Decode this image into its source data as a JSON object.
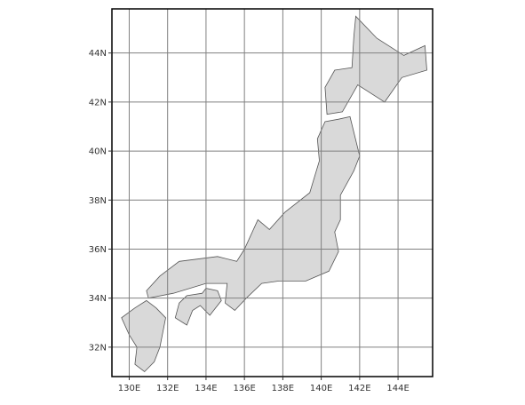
{
  "map": {
    "type": "graticule-map",
    "projection": "lonlat",
    "lon_range": [
      129.1,
      145.8
    ],
    "lat_range": [
      30.8,
      45.8
    ],
    "grid_lon": [
      130,
      132,
      134,
      136,
      138,
      140,
      142,
      144
    ],
    "grid_lat": [
      32,
      34,
      36,
      38,
      40,
      42,
      44
    ],
    "x_tick_labels": [
      "130E",
      "132E",
      "134E",
      "136E",
      "138E",
      "140E",
      "142E",
      "144E"
    ],
    "y_tick_labels": [
      "32N",
      "34N",
      "36N",
      "38N",
      "40N",
      "42N",
      "44N"
    ],
    "colors": {
      "land": "#d9d9d9",
      "coastline": "#555555",
      "grid": "#808080",
      "frame": "#000000",
      "background": "#ffffff"
    },
    "land_polygons": [
      {
        "name": "hokkaido",
        "coords": [
          [
            141.8,
            45.5
          ],
          [
            142.9,
            44.6
          ],
          [
            144.3,
            43.9
          ],
          [
            145.4,
            44.3
          ],
          [
            145.5,
            43.3
          ],
          [
            144.2,
            43.0
          ],
          [
            143.3,
            42.0
          ],
          [
            141.9,
            42.7
          ],
          [
            141.1,
            41.6
          ],
          [
            140.3,
            41.5
          ],
          [
            140.2,
            42.6
          ],
          [
            140.7,
            43.3
          ],
          [
            141.6,
            43.4
          ],
          [
            141.7,
            44.7
          ]
        ]
      },
      {
        "name": "honshu",
        "coords": [
          [
            140.9,
            41.3
          ],
          [
            141.5,
            41.4
          ],
          [
            142.0,
            39.8
          ],
          [
            141.7,
            39.2
          ],
          [
            141.0,
            38.2
          ],
          [
            141.0,
            37.2
          ],
          [
            140.7,
            36.7
          ],
          [
            140.9,
            35.9
          ],
          [
            140.4,
            35.1
          ],
          [
            139.2,
            34.7
          ],
          [
            137.8,
            34.7
          ],
          [
            136.9,
            34.6
          ],
          [
            136.1,
            34.0
          ],
          [
            135.5,
            33.5
          ],
          [
            135.0,
            33.8
          ],
          [
            135.1,
            34.6
          ],
          [
            134.0,
            34.6
          ],
          [
            132.3,
            34.2
          ],
          [
            131.0,
            34.0
          ],
          [
            130.9,
            34.3
          ],
          [
            131.6,
            34.9
          ],
          [
            132.6,
            35.5
          ],
          [
            134.6,
            35.7
          ],
          [
            135.6,
            35.5
          ],
          [
            136.0,
            36.0
          ],
          [
            136.7,
            37.2
          ],
          [
            137.3,
            36.8
          ],
          [
            138.1,
            37.5
          ],
          [
            139.4,
            38.3
          ],
          [
            139.9,
            39.6
          ],
          [
            139.8,
            40.5
          ],
          [
            140.2,
            41.2
          ]
        ]
      },
      {
        "name": "kyushu",
        "coords": [
          [
            130.9,
            33.9
          ],
          [
            131.4,
            33.6
          ],
          [
            131.9,
            33.2
          ],
          [
            131.6,
            32.0
          ],
          [
            131.3,
            31.4
          ],
          [
            130.8,
            31.0
          ],
          [
            130.3,
            31.3
          ],
          [
            130.4,
            32.0
          ],
          [
            130.0,
            32.5
          ],
          [
            129.6,
            33.2
          ],
          [
            130.3,
            33.6
          ]
        ]
      },
      {
        "name": "shikoku",
        "coords": [
          [
            133.0,
            34.1
          ],
          [
            133.8,
            34.2
          ],
          [
            134.0,
            34.4
          ],
          [
            134.6,
            34.3
          ],
          [
            134.8,
            33.9
          ],
          [
            134.2,
            33.3
          ],
          [
            133.7,
            33.7
          ],
          [
            133.3,
            33.5
          ],
          [
            133.0,
            32.9
          ],
          [
            132.4,
            33.2
          ],
          [
            132.6,
            33.8
          ]
        ]
      }
    ]
  }
}
